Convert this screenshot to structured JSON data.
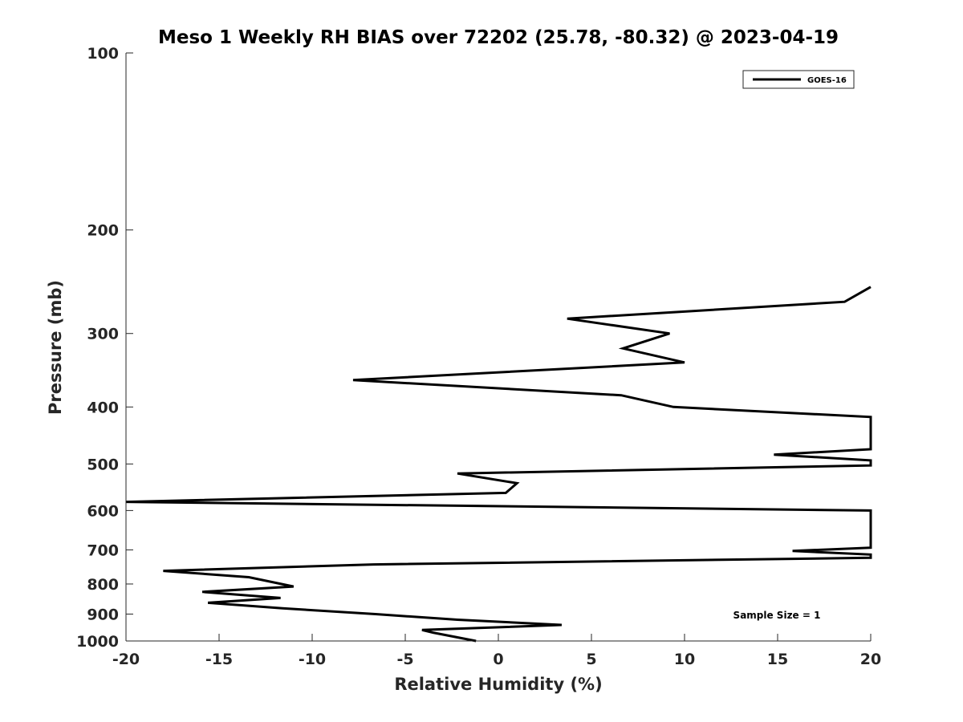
{
  "chart_data": {
    "type": "line",
    "title": "Meso 1 Weekly RH BIAS over 72202 (25.78, -80.32) @ 2023-04-19",
    "xlabel": "Relative Humidity (%)",
    "ylabel": "Pressure (mb)",
    "xlim": [
      -20,
      20
    ],
    "ylim": [
      1000,
      100
    ],
    "y_scale": "log",
    "x_ticks": [
      -20,
      -15,
      -10,
      -5,
      0,
      5,
      10,
      15,
      20
    ],
    "x_tick_labels": [
      "-20",
      "-15",
      "-10",
      "-5",
      "0",
      "5",
      "10",
      "15",
      "20"
    ],
    "y_ticks": [
      100,
      200,
      300,
      400,
      500,
      600,
      700,
      800,
      900,
      1000
    ],
    "y_tick_labels": [
      "100",
      "200",
      "300",
      "400",
      "500",
      "600",
      "700",
      "800",
      "900",
      "1000"
    ],
    "grid": false,
    "legend_position": "top-right",
    "series": [
      {
        "name": "GOES-16",
        "color": "#000000",
        "points": [
          [
            20.0,
            250
          ],
          [
            18.6,
            265
          ],
          [
            3.7,
            283
          ],
          [
            9.2,
            300
          ],
          [
            6.7,
            318
          ],
          [
            10.0,
            336
          ],
          [
            -7.8,
            360
          ],
          [
            6.6,
            382
          ],
          [
            9.4,
            400
          ],
          [
            20.0,
            416
          ],
          [
            20.0,
            472
          ],
          [
            14.8,
            482
          ],
          [
            20.0,
            493
          ],
          [
            20.0,
            503
          ],
          [
            -2.2,
            519
          ],
          [
            1.0,
            539
          ],
          [
            0.4,
            560
          ],
          [
            -20.0,
            580
          ],
          [
            20.0,
            600
          ],
          [
            20.0,
            694
          ],
          [
            15.8,
            703
          ],
          [
            20.0,
            713
          ],
          [
            20.0,
            722
          ],
          [
            -6.7,
            741
          ],
          [
            -18.0,
            760
          ],
          [
            -13.4,
            779
          ],
          [
            -11.0,
            808
          ],
          [
            -15.9,
            825
          ],
          [
            -11.7,
            845
          ],
          [
            -15.6,
            861
          ],
          [
            -11.6,
            880
          ],
          [
            -6.6,
            900
          ],
          [
            -2.2,
            920
          ],
          [
            3.4,
            939
          ],
          [
            -4.1,
            958
          ],
          [
            -3.5,
            968
          ],
          [
            -1.2,
            1000
          ]
        ]
      }
    ],
    "annotation": "Sample Size = 1"
  }
}
